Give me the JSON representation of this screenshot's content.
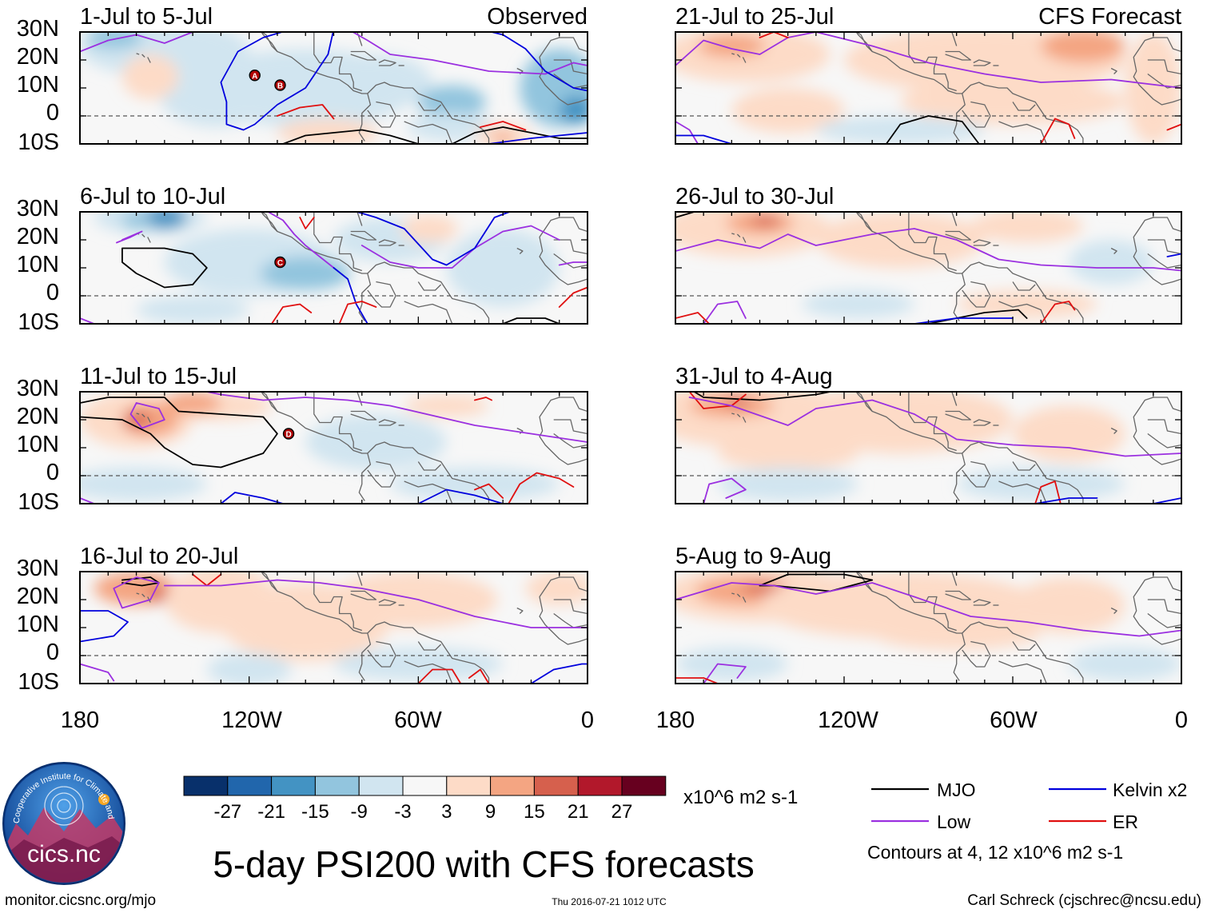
{
  "title": "5-day PSI200 with CFS forecasts",
  "footer": {
    "url": "monitor.cicsnc.org/mjo",
    "timestamp": "Thu 2016-07-21 1012 UTC",
    "author": "Carl Schreck (cjschrec@ncsu.edu)"
  },
  "logo": {
    "text": "cics.nc",
    "ring_text": "Cooperative Institute for Climate and Satellites"
  },
  "left_column_label": "Observed",
  "right_column_label": "CFS Forecast",
  "lat_labels": [
    "30N",
    "20N",
    "10N",
    "0",
    "10S"
  ],
  "lon_labels": [
    "180",
    "120W",
    "60W",
    "0"
  ],
  "panels_left": [
    {
      "period": "1-Jul to 5-Jul"
    },
    {
      "period": "6-Jul to 10-Jul"
    },
    {
      "period": "11-Jul to 15-Jul"
    },
    {
      "period": "16-Jul to 20-Jul"
    }
  ],
  "panels_right": [
    {
      "period": "21-Jul to 25-Jul"
    },
    {
      "period": "26-Jul to 30-Jul"
    },
    {
      "period": "31-Jul to 4-Aug"
    },
    {
      "period": "5-Aug to 9-Aug"
    }
  ],
  "storm_markers": [
    {
      "label": "A",
      "panel": 0,
      "lon": -118,
      "lat": 14.5
    },
    {
      "label": "B",
      "panel": 0,
      "lon": -109,
      "lat": 11
    },
    {
      "label": "C",
      "panel": 1,
      "lon": -109,
      "lat": 12
    },
    {
      "label": "D",
      "panel": 2,
      "lon": -106,
      "lat": 15
    }
  ],
  "colorbar": {
    "unit": "x10^6 m2 s-1",
    "ticks": [
      "-27",
      "-21",
      "-15",
      "-9",
      "-3",
      "3",
      "9",
      "15",
      "21",
      "27"
    ],
    "colors": [
      "#08306b",
      "#2166ac",
      "#4393c3",
      "#92c5de",
      "#d1e5f0",
      "#f7f7f7",
      "#fddbc7",
      "#f4a582",
      "#d6604d",
      "#b2182b",
      "#67001f"
    ]
  },
  "legend": {
    "items": [
      {
        "label": "MJO",
        "color": "#000000"
      },
      {
        "label": "Kelvin x2",
        "color": "#0000dd"
      },
      {
        "label": "Low",
        "color": "#9b30e0"
      },
      {
        "label": "ER",
        "color": "#e01010"
      }
    ],
    "note": "Contours at 4, 12 x10^6 m2 s-1"
  }
}
